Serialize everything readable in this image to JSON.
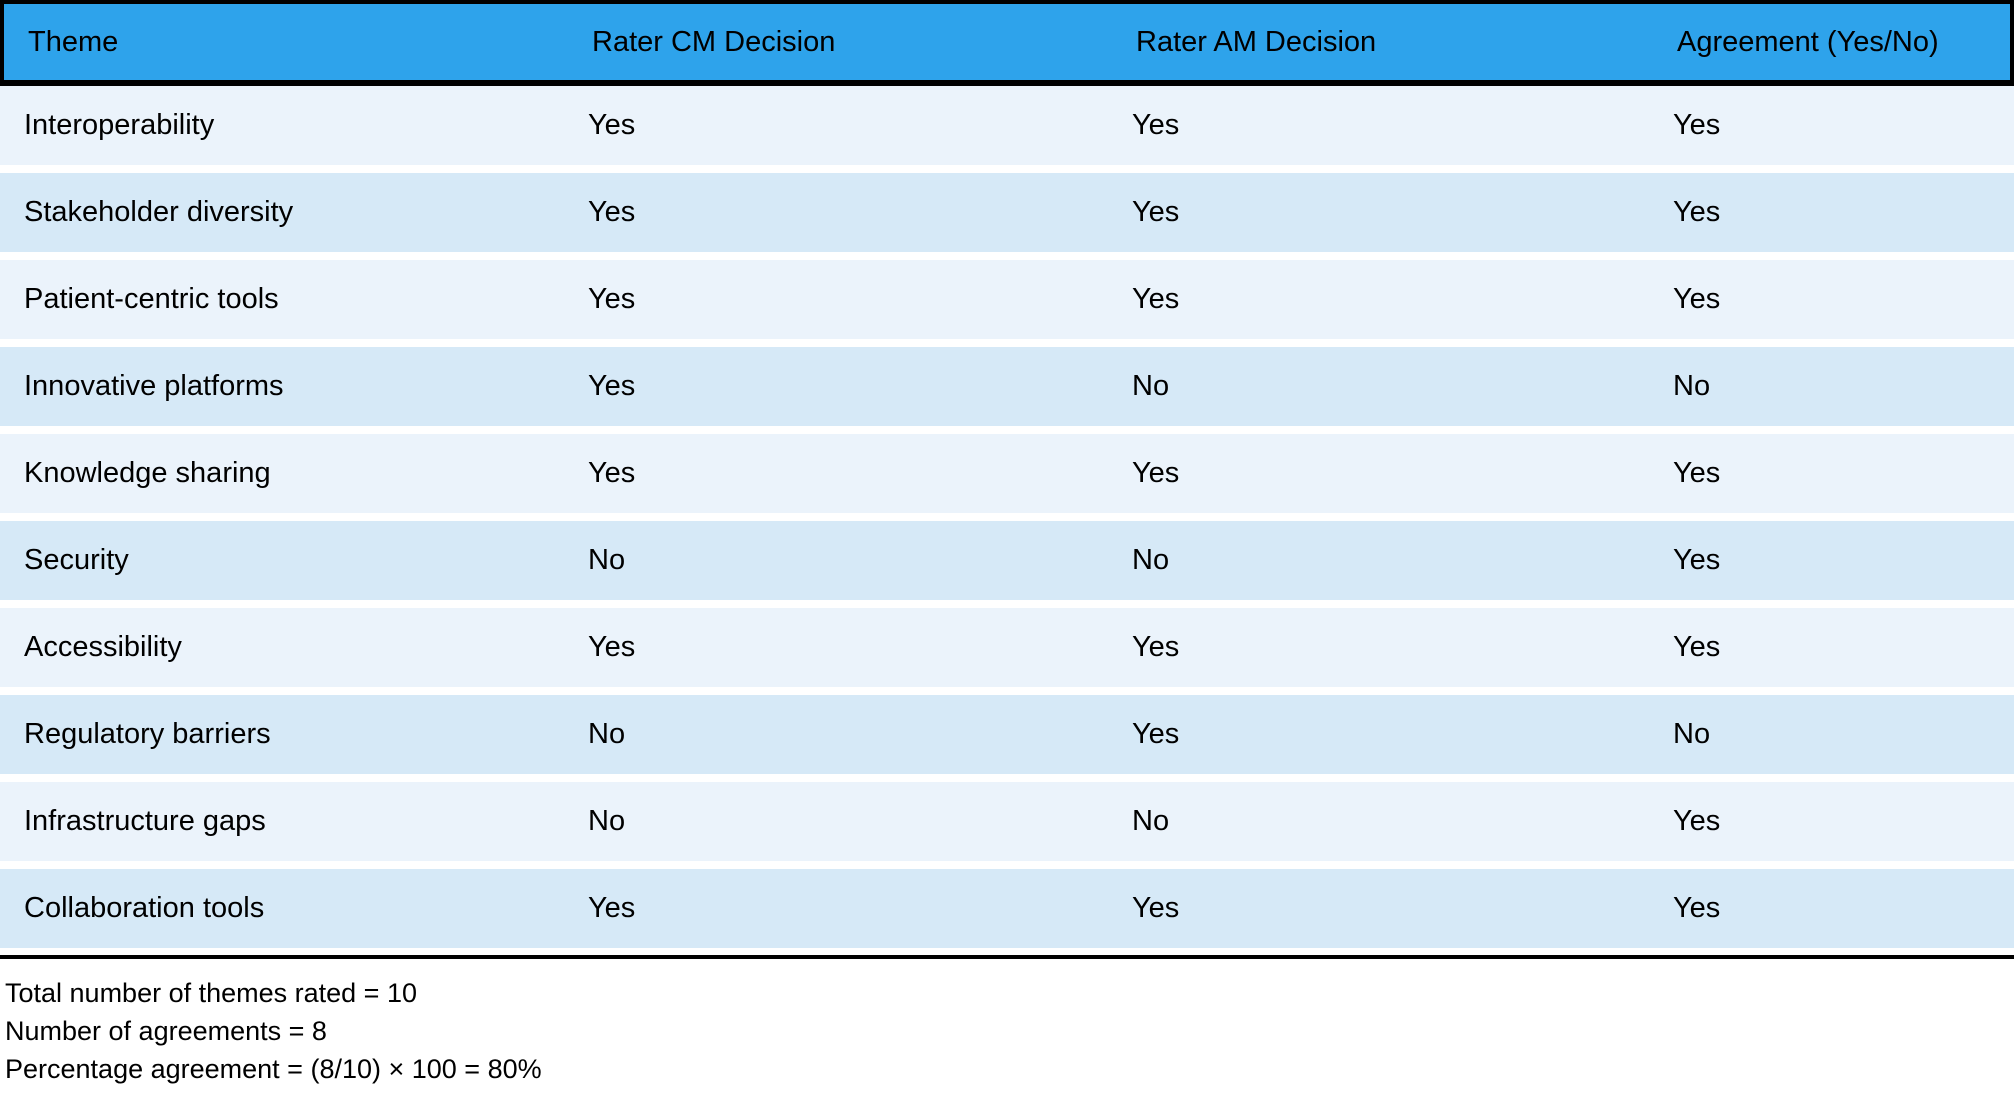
{
  "table": {
    "headers": [
      "Theme",
      "Rater CM Decision",
      "Rater AM Decision",
      "Agreement (Yes/No)"
    ],
    "rows": [
      {
        "theme": "Interoperability",
        "cm": "Yes",
        "am": "Yes",
        "agreement": "Yes"
      },
      {
        "theme": "Stakeholder diversity",
        "cm": "Yes",
        "am": "Yes",
        "agreement": "Yes"
      },
      {
        "theme": "Patient-centric tools",
        "cm": "Yes",
        "am": "Yes",
        "agreement": "Yes"
      },
      {
        "theme": "Innovative platforms",
        "cm": "Yes",
        "am": "No",
        "agreement": "No"
      },
      {
        "theme": "Knowledge sharing",
        "cm": "Yes",
        "am": "Yes",
        "agreement": "Yes"
      },
      {
        "theme": "Security",
        "cm": "No",
        "am": "No",
        "agreement": "Yes"
      },
      {
        "theme": "Accessibility",
        "cm": "Yes",
        "am": "Yes",
        "agreement": "Yes"
      },
      {
        "theme": "Regulatory barriers",
        "cm": "No",
        "am": "Yes",
        "agreement": "No"
      },
      {
        "theme": "Infrastructure gaps",
        "cm": "No",
        "am": "No",
        "agreement": "Yes"
      },
      {
        "theme": "Collaboration tools",
        "cm": "Yes",
        "am": "Yes",
        "agreement": "Yes"
      }
    ]
  },
  "footer": {
    "lines": [
      "Total number of themes rated = 10",
      "Number of agreements = 8",
      "Percentage agreement = (8/10) × 100 = 80%"
    ]
  },
  "colors": {
    "header_bg": "#2EA3EB",
    "row_light": "#EBF3FB",
    "row_dark": "#D6E9F7",
    "border": "#000000",
    "text": "#000000"
  }
}
